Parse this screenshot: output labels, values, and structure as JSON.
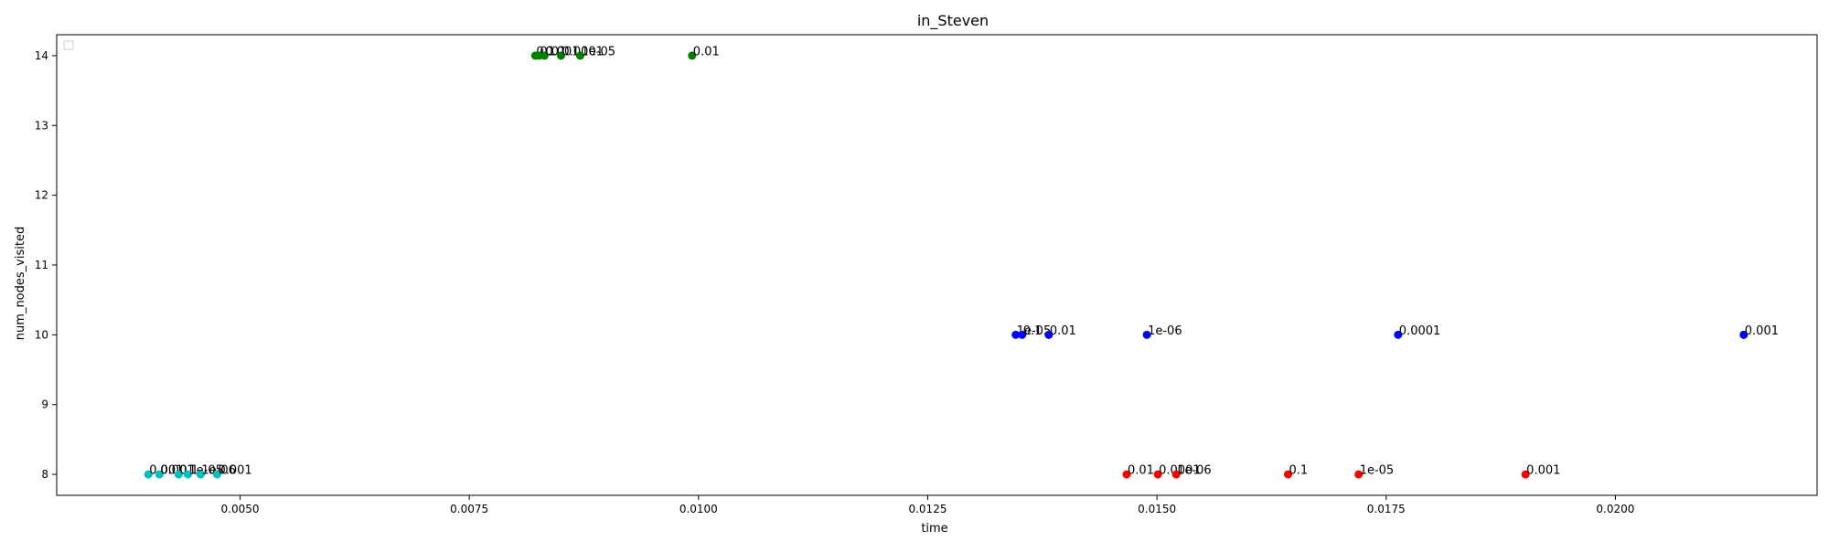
{
  "chart_data": {
    "type": "scatter",
    "title": "in_Steven",
    "xlabel": "time",
    "ylabel": "num_nodes_visited",
    "xlim": [
      0.003,
      0.0222
    ],
    "ylim": [
      7.7,
      14.3
    ],
    "x_ticks": [
      0.005,
      0.0075,
      0.01,
      0.0125,
      0.015,
      0.0175,
      0.02
    ],
    "x_tick_labels": [
      "0.0050",
      "0.0075",
      "0.0100",
      "0.0125",
      "0.0150",
      "0.0175",
      "0.0200"
    ],
    "y_ticks": [
      8,
      9,
      10,
      11,
      12,
      13,
      14
    ],
    "y_tick_labels": [
      "8",
      "9",
      "10",
      "11",
      "12",
      "13",
      "14"
    ],
    "grid": false,
    "legend": {
      "placement": "top-left",
      "entries": []
    },
    "series": [
      {
        "color": "#00bfbf",
        "points": [
          {
            "x": 0.004,
            "y": 8,
            "label": "0.001"
          },
          {
            "x": 0.00412,
            "y": 8,
            "label": "0.001"
          },
          {
            "x": 0.00433,
            "y": 8,
            "label": "0.1"
          },
          {
            "x": 0.00443,
            "y": 8,
            "label": "1e-05"
          },
          {
            "x": 0.00457,
            "y": 8,
            "label": "1e-06"
          },
          {
            "x": 0.00475,
            "y": 8,
            "label": "0.001"
          }
        ]
      },
      {
        "color": "#008000",
        "points": [
          {
            "x": 0.00822,
            "y": 14,
            "label": "0.1"
          },
          {
            "x": 0.00826,
            "y": 14,
            "label": "0.01"
          },
          {
            "x": 0.00832,
            "y": 14,
            "label": "0.001"
          },
          {
            "x": 0.0085,
            "y": 14,
            "label": "0.0001"
          },
          {
            "x": 0.00871,
            "y": 14,
            "label": "1e-05"
          },
          {
            "x": 0.00993,
            "y": 14,
            "label": "0.01"
          }
        ]
      },
      {
        "color": "#0000ff",
        "points": [
          {
            "x": 0.01346,
            "y": 10,
            "label": "1e-05"
          },
          {
            "x": 0.01353,
            "y": 10,
            "label": "0.1"
          },
          {
            "x": 0.01382,
            "y": 10,
            "label": "0.01"
          },
          {
            "x": 0.01489,
            "y": 10,
            "label": "1e-06"
          },
          {
            "x": 0.01763,
            "y": 10,
            "label": "0.0001"
          },
          {
            "x": 0.0214,
            "y": 10,
            "label": "0.001"
          }
        ]
      },
      {
        "color": "#ff0000",
        "points": [
          {
            "x": 0.01467,
            "y": 8,
            "label": "0.01"
          },
          {
            "x": 0.01501,
            "y": 8,
            "label": "0.0001"
          },
          {
            "x": 0.01521,
            "y": 8,
            "label": "1e-06"
          },
          {
            "x": 0.01643,
            "y": 8,
            "label": "0.1"
          },
          {
            "x": 0.0172,
            "y": 8,
            "label": "1e-05"
          },
          {
            "x": 0.01902,
            "y": 8,
            "label": "0.001"
          }
        ]
      }
    ]
  }
}
